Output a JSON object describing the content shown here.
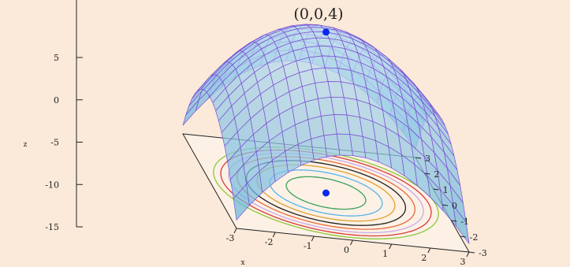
{
  "chart_data": {
    "type": "surface3d",
    "function": "z = 4 - x^2 - y^2",
    "x": [
      -3,
      -2,
      -1,
      0,
      1,
      2,
      3
    ],
    "y": [
      -3,
      -2,
      -1,
      0,
      1,
      2,
      3
    ],
    "z_ticks": [
      5,
      0,
      -5,
      -10,
      -15
    ],
    "x_tick_labels": [
      "-3",
      "-2",
      "-1",
      "0",
      "1",
      "2",
      "3"
    ],
    "y_tick_labels": [
      "-3",
      "-2",
      "-1",
      "0",
      "1",
      "2",
      "3"
    ],
    "z_tick_labels": [
      "5",
      "0",
      "-5",
      "-10",
      "-15"
    ],
    "xlim": [
      -3,
      3
    ],
    "ylim": [
      -3,
      3
    ],
    "zlim": [
      -15,
      5
    ],
    "xlabel": "x",
    "ylabel": "",
    "zlabel": "z",
    "contour_levels": [
      3,
      2,
      1,
      0,
      -1,
      -2,
      -3,
      -4
    ],
    "surface_color": "#7fc4e6",
    "mesh_color": "#7b4fd4",
    "contour_colors": [
      "#3aa05a",
      "#52b4e8",
      "#e0a030",
      "#202020",
      "#e86a3a",
      "#c8a8e8",
      "#d83a3a",
      "#8ec838"
    ],
    "marked_point": {
      "label": "(0,0,4)",
      "x": 0,
      "y": 0,
      "z": 4,
      "color": "#0a28f0"
    },
    "marked_point_projection": {
      "x": 0,
      "y": 0,
      "color": "#0a28f0"
    },
    "grid": false
  }
}
